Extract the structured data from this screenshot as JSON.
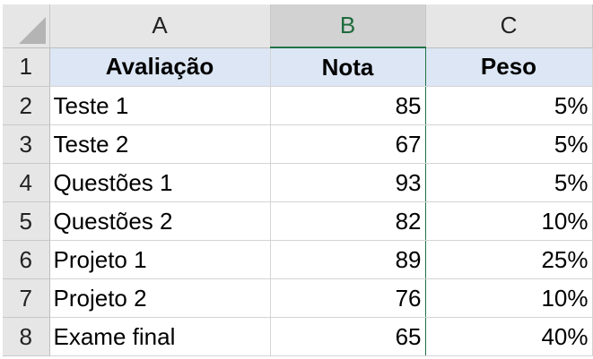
{
  "columns": {
    "a": "A",
    "b": "B",
    "c": "C"
  },
  "rows": [
    {
      "num": "1",
      "a": "Avaliação",
      "b": "Nota",
      "c": "Peso"
    },
    {
      "num": "2",
      "a": "Teste 1",
      "b": "85",
      "c": "5%"
    },
    {
      "num": "3",
      "a": "Teste 2",
      "b": "67",
      "c": "5%"
    },
    {
      "num": "4",
      "a": "Questões 1",
      "b": "93",
      "c": "5%"
    },
    {
      "num": "5",
      "a": "Questões 2",
      "b": "82",
      "c": "10%"
    },
    {
      "num": "6",
      "a": "Projeto 1",
      "b": "89",
      "c": "25%"
    },
    {
      "num": "7",
      "a": "Projeto 2",
      "b": "76",
      "c": "10%"
    },
    {
      "num": "8",
      "a": "Exame final",
      "b": "65",
      "c": "40%"
    }
  ],
  "selected_column": "B",
  "colors": {
    "header_fill": "#dce6f4",
    "selection_accent": "#217346",
    "grid_header_bg": "#e6e6e6"
  }
}
